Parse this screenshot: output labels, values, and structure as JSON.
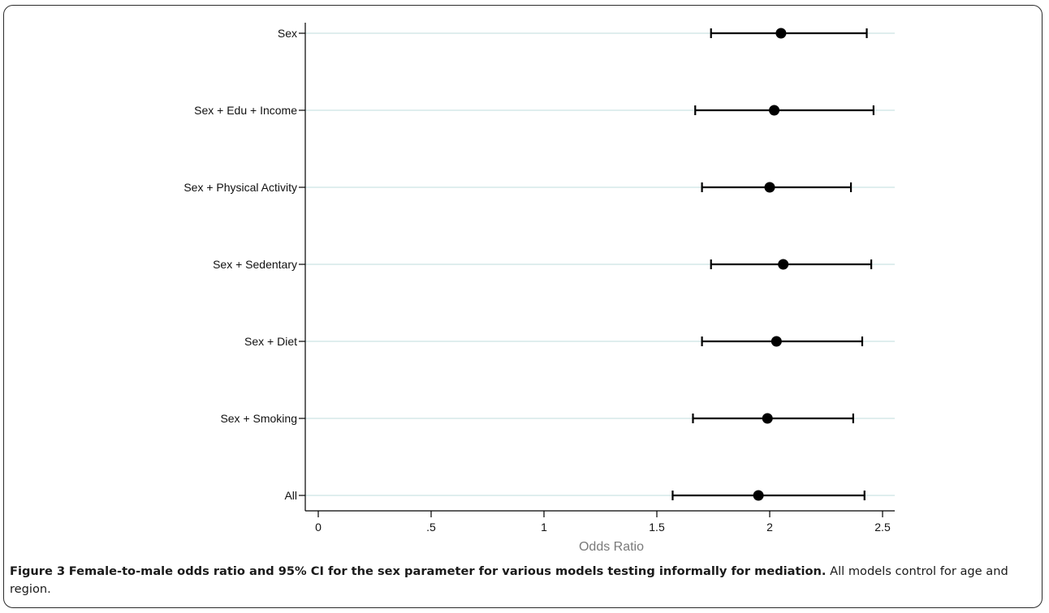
{
  "chart_data": {
    "type": "forest",
    "xlabel": "Odds Ratio",
    "xlim": [
      -0.05,
      2.55
    ],
    "xticks": [
      0,
      0.5,
      1,
      1.5,
      2,
      2.5
    ],
    "xtick_labels": [
      "0",
      ".5",
      "1",
      "1.5",
      "2",
      "2.5"
    ],
    "grid": "horizontal",
    "rows": [
      {
        "label": "Sex",
        "estimate": 2.05,
        "lower": 1.74,
        "upper": 2.43
      },
      {
        "label": "Sex + Edu + Income",
        "estimate": 2.02,
        "lower": 1.67,
        "upper": 2.46
      },
      {
        "label": "Sex + Physical Activity",
        "estimate": 2.0,
        "lower": 1.7,
        "upper": 2.36
      },
      {
        "label": "Sex + Sedentary",
        "estimate": 2.06,
        "lower": 1.74,
        "upper": 2.45
      },
      {
        "label": "Sex + Diet",
        "estimate": 2.03,
        "lower": 1.7,
        "upper": 2.41
      },
      {
        "label": "Sex + Smoking",
        "estimate": 1.99,
        "lower": 1.66,
        "upper": 2.37
      },
      {
        "label": "All",
        "estimate": 1.95,
        "lower": 1.57,
        "upper": 2.42
      }
    ],
    "colors": {
      "marker": "#000000",
      "gridline": "#dfeeee",
      "axis_label": "#7a7a7a"
    }
  },
  "caption": {
    "figure_label": "Figure 3",
    "bold_text": "Female-to-male odds ratio and 95% CI for the sex parameter for various models testing informally for mediation.",
    "text": "All models control for age and region."
  }
}
